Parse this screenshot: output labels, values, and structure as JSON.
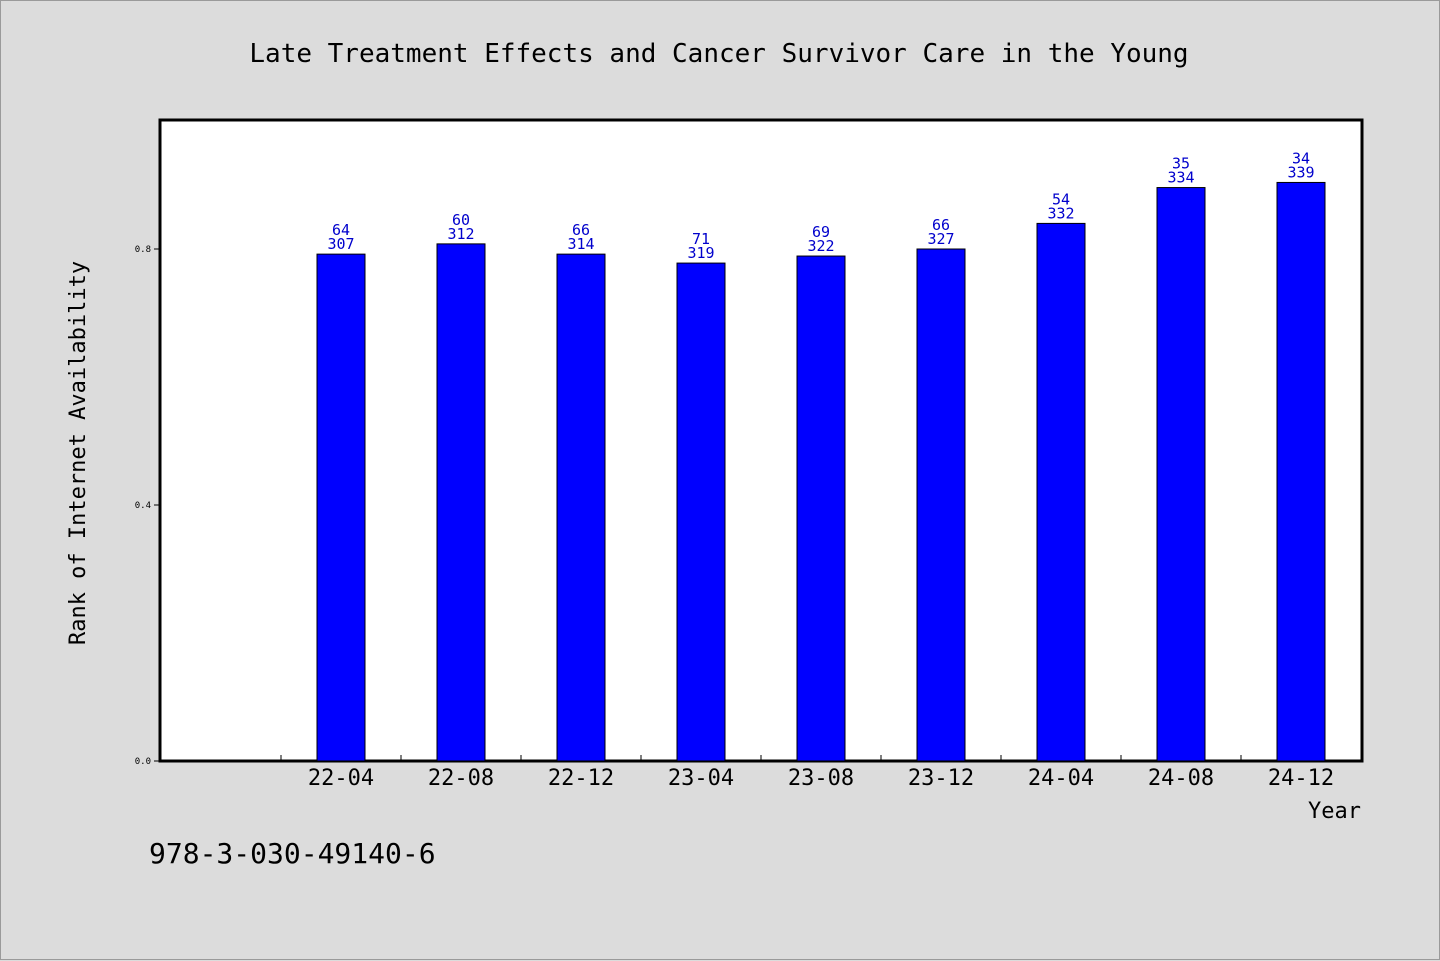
{
  "chart_data": {
    "type": "bar",
    "title": "Late Treatment Effects and Cancer Survivor Care in the Young",
    "xlabel": "Year",
    "ylabel": "Rank of Internet Availability",
    "categories": [
      "22-04",
      "22-08",
      "22-12",
      "23-04",
      "23-08",
      "23-12",
      "24-04",
      "24-08",
      "24-12"
    ],
    "values": [
      0.792,
      0.808,
      0.792,
      0.778,
      0.789,
      0.8,
      0.84,
      0.896,
      0.904
    ],
    "labels_top": [
      "64",
      "60",
      "66",
      "71",
      "69",
      "66",
      "54",
      "35",
      "34"
    ],
    "labels_bottom": [
      "307",
      "312",
      "314",
      "319",
      "322",
      "327",
      "332",
      "334",
      "339"
    ],
    "ylim": [
      0,
      1.0
    ],
    "yticks": [
      0.0,
      0.4,
      0.8
    ],
    "ytick_labels": [
      "0.0",
      "0.4",
      "0.8"
    ],
    "grid": false,
    "colors": {
      "bar": "#0000ff",
      "bar_label": "#0000cc",
      "plot_bg": "#ffffff",
      "page_bg": "#dcdcdc"
    }
  },
  "footer": {
    "isbn": "978-3-030-49140-6"
  }
}
